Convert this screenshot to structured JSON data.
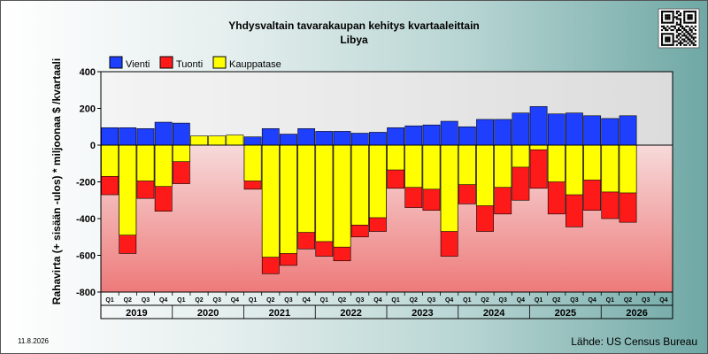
{
  "chart_data": {
    "type": "bar",
    "title": "Yhdysvaltain tavarakaupan kehitys kvartaaleittain",
    "subtitle": "Libya",
    "ylabel": "Rahavirta (+ sisään -ulos)  *  miljoonaa $ /kvartaali",
    "ylim": [
      -800,
      400
    ],
    "yticks": [
      400,
      200,
      0,
      -200,
      -400,
      -600,
      -800
    ],
    "grid": false,
    "legend_position": "top-left",
    "quarter_labels": [
      "Q1",
      "Q2",
      "Q3",
      "Q4",
      "Q1",
      "Q2",
      "Q3",
      "Q4",
      "Q1",
      "Q2",
      "Q3",
      "Q4",
      "Q1",
      "Q2",
      "Q3",
      "Q4",
      "Q1",
      "Q2",
      "Q3",
      "Q4",
      "Q1",
      "Q2",
      "Q3",
      "Q4",
      "Q1",
      "Q2",
      "Q3",
      "Q4",
      "Q1",
      "Q2",
      "Q3",
      "Q4"
    ],
    "years": [
      "2019",
      "2020",
      "2021",
      "2022",
      "2023",
      "2024",
      "2025",
      "2026"
    ],
    "series": [
      {
        "name": "Vienti",
        "color": "#1f3fff",
        "values": [
          95,
          95,
          90,
          125,
          120,
          0,
          0,
          0,
          45,
          90,
          60,
          90,
          75,
          75,
          65,
          70,
          95,
          105,
          110,
          130,
          100,
          140,
          140,
          175,
          210,
          170,
          175,
          160,
          145,
          160,
          null,
          null
        ]
      },
      {
        "name": "Tuonti",
        "color": "#ff1a1a",
        "values": [
          -270,
          -590,
          -290,
          -360,
          -210,
          0,
          0,
          0,
          -240,
          -700,
          -655,
          -565,
          -605,
          -630,
          -500,
          -470,
          -235,
          -340,
          -355,
          -605,
          -320,
          -470,
          -375,
          -300,
          -235,
          -375,
          -445,
          -355,
          -400,
          -420,
          null,
          null
        ]
      },
      {
        "name": "Kauppatase",
        "color": "#ffff00",
        "values": [
          -170,
          -490,
          -195,
          -225,
          -90,
          50,
          50,
          55,
          -195,
          -610,
          -590,
          -475,
          -525,
          -555,
          -435,
          -395,
          -135,
          -230,
          -240,
          -470,
          -215,
          -330,
          -230,
          -120,
          -25,
          -200,
          -270,
          -190,
          -255,
          -260,
          null,
          null
        ]
      }
    ]
  },
  "footer": {
    "date": "11.8.2026",
    "source": "Lähde: US Census Bureau"
  },
  "qr": {
    "label": "qr-code"
  }
}
